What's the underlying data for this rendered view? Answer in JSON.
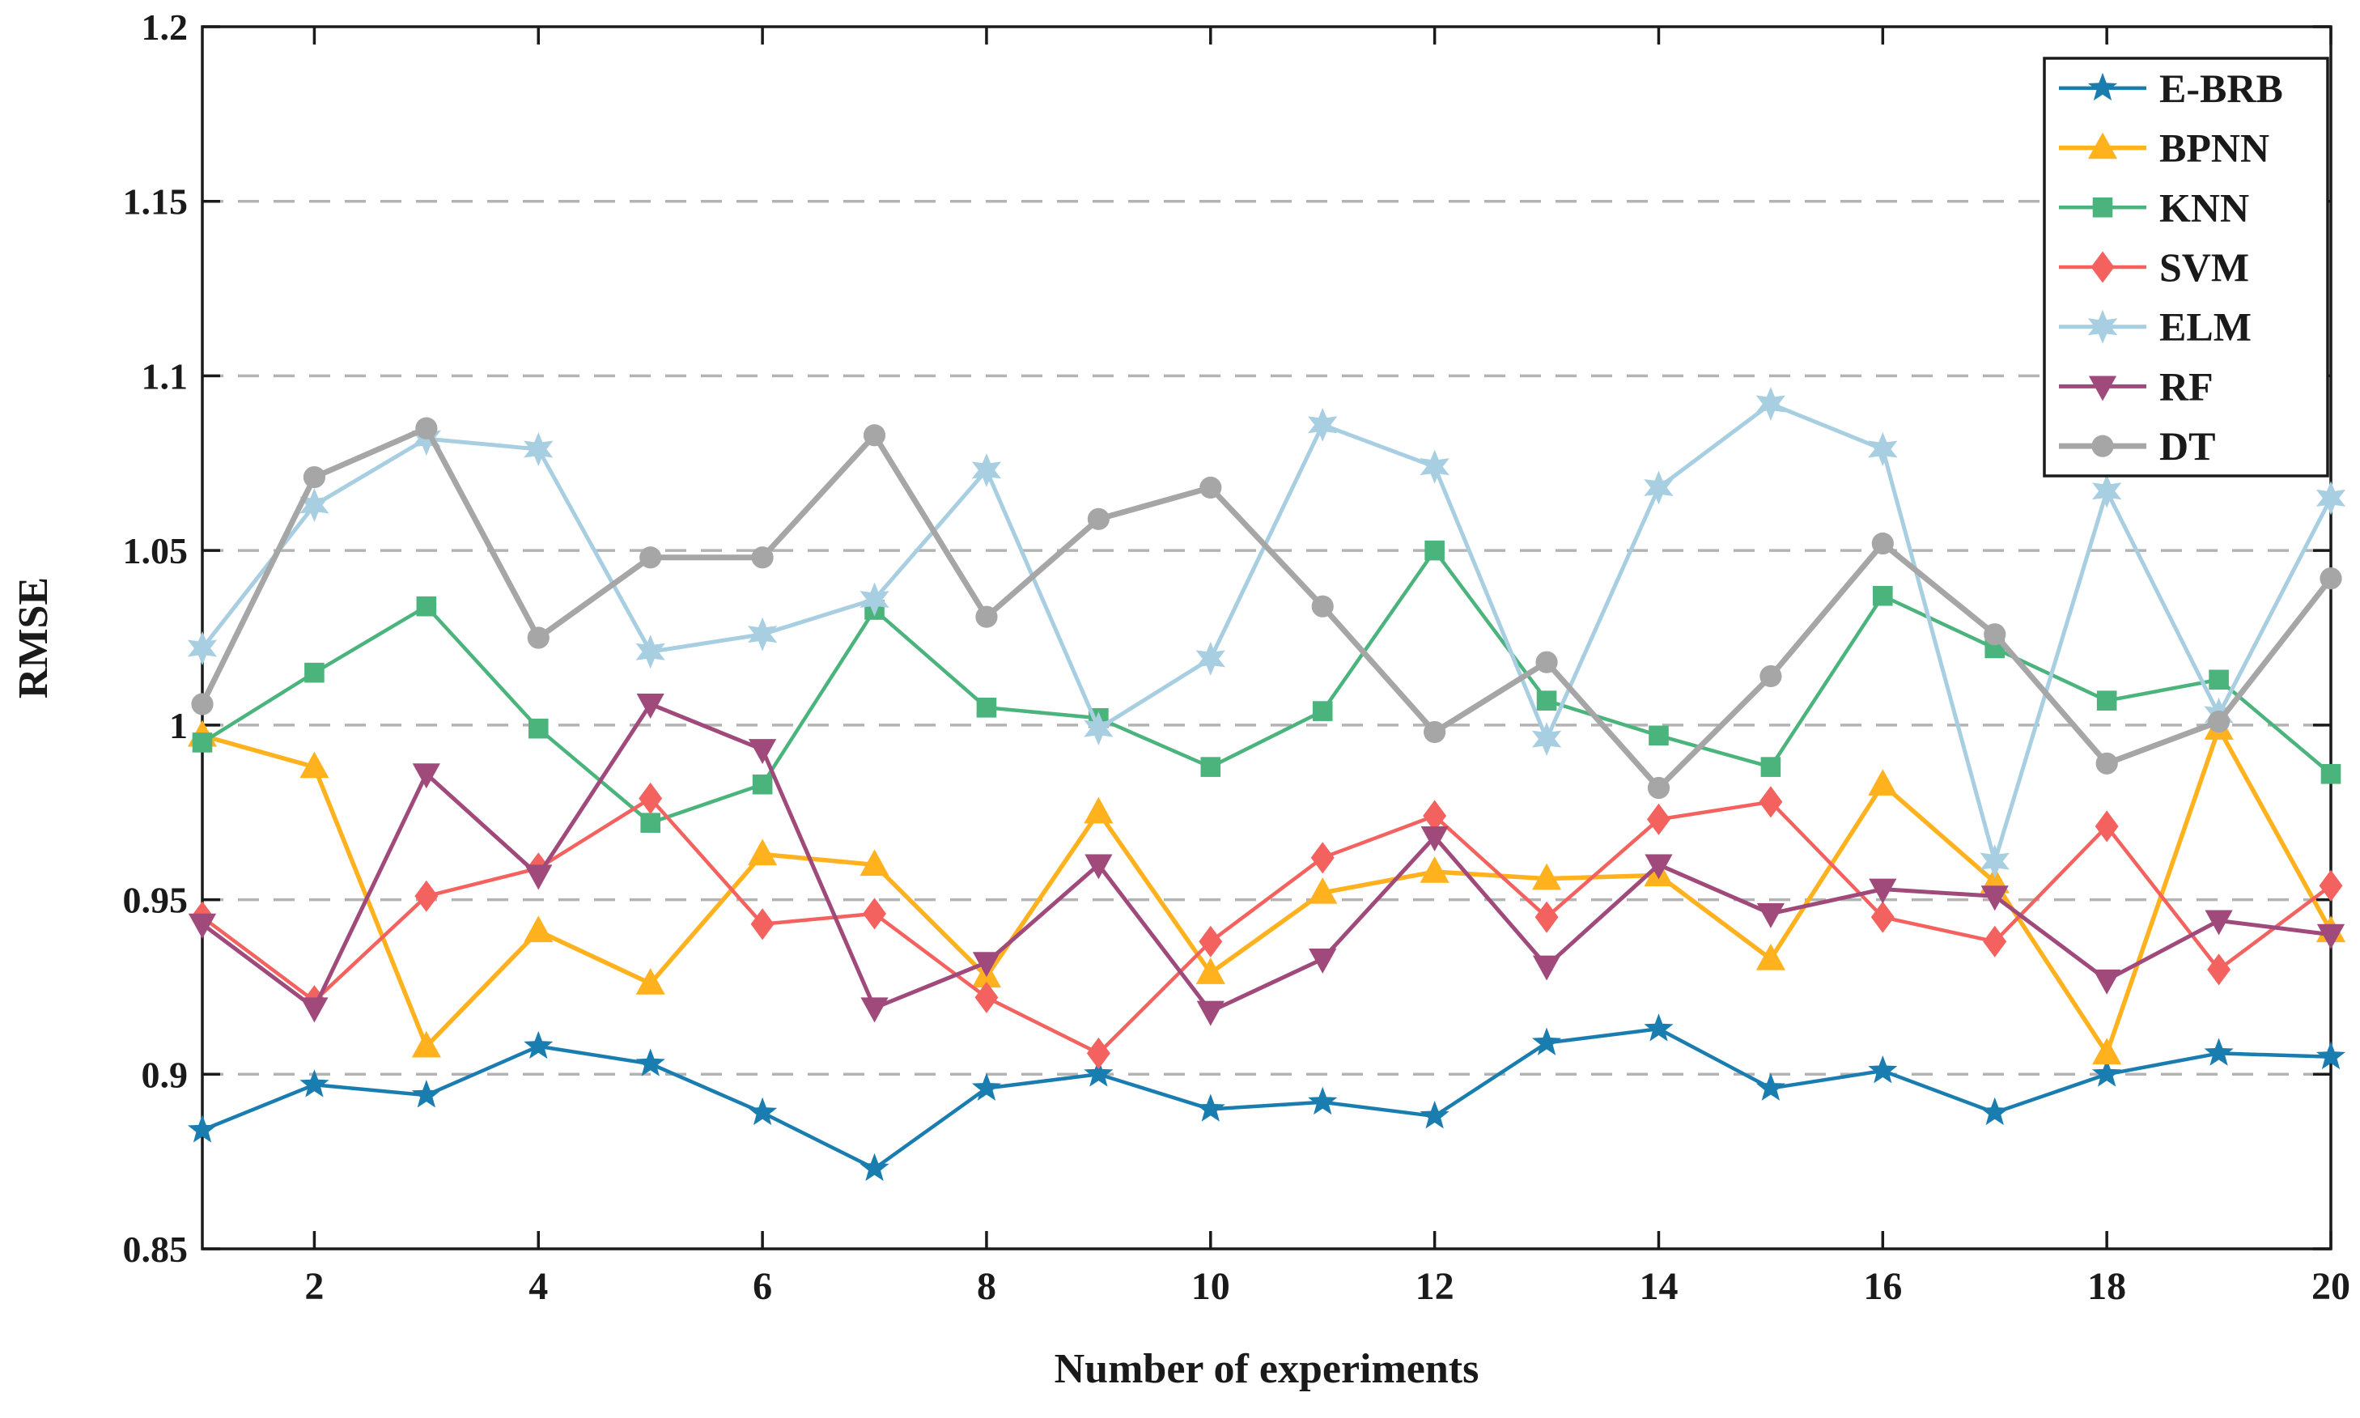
{
  "figure": {
    "background": "#ffffff",
    "border_color": "#1a1a1a",
    "grid_color": "#b3b3b3",
    "tick_label_color": "#1a1a1a"
  },
  "chart_data": {
    "type": "line",
    "title": "",
    "xlabel": "Number of experiments",
    "ylabel": "RMSE",
    "xlim": [
      1,
      20
    ],
    "ylim": [
      0.85,
      1.2
    ],
    "xticks": [
      2,
      4,
      6,
      8,
      10,
      12,
      14,
      16,
      18,
      20
    ],
    "yticks": [
      0.85,
      0.9,
      0.95,
      1.0,
      1.05,
      1.1,
      1.15,
      1.2
    ],
    "ytick_labels": [
      "0.85",
      "0.9",
      "0.95",
      "1",
      "1.05",
      "1.1",
      "1.15",
      "1.2"
    ],
    "grid": "horizontal-dashed",
    "grid_values": [
      0.9,
      0.95,
      1.0,
      1.05,
      1.1,
      1.15
    ],
    "legend_position": "top-right",
    "x": [
      1,
      2,
      3,
      4,
      5,
      6,
      7,
      8,
      9,
      10,
      11,
      12,
      13,
      14,
      15,
      16,
      17,
      18,
      19,
      20
    ],
    "series": [
      {
        "name": "E-BRB",
        "color": "#1a7db0",
        "marker": "star",
        "line_width": 4.5,
        "marker_size": 19,
        "values": [
          0.884,
          0.897,
          0.894,
          0.908,
          0.903,
          0.889,
          0.873,
          0.896,
          0.9,
          0.89,
          0.892,
          0.888,
          0.909,
          0.913,
          0.896,
          0.901,
          0.889,
          0.9,
          0.906,
          0.905
        ]
      },
      {
        "name": "BPNN",
        "color": "#ffb11e",
        "marker": "triangle-up",
        "line_width": 5.5,
        "marker_size": 19,
        "values": [
          0.997,
          0.988,
          0.908,
          0.941,
          0.926,
          0.963,
          0.96,
          0.928,
          0.975,
          0.929,
          0.952,
          0.958,
          0.956,
          0.957,
          0.933,
          0.983,
          0.955,
          0.906,
          0.999,
          0.941
        ]
      },
      {
        "name": "KNN",
        "color": "#4bb47d",
        "marker": "square",
        "line_width": 4.5,
        "marker_size": 15,
        "values": [
          0.995,
          1.015,
          1.034,
          0.999,
          0.972,
          0.983,
          1.033,
          1.005,
          1.002,
          0.988,
          1.004,
          1.05,
          1.007,
          0.997,
          0.988,
          1.037,
          1.022,
          1.007,
          1.013,
          0.986
        ]
      },
      {
        "name": "SVM",
        "color": "#f3625f",
        "marker": "diamond",
        "line_width": 4.5,
        "marker_size": 17,
        "values": [
          0.945,
          0.921,
          0.951,
          0.959,
          0.979,
          0.943,
          0.946,
          0.922,
          0.906,
          0.938,
          0.962,
          0.974,
          0.945,
          0.973,
          0.978,
          0.945,
          0.938,
          0.971,
          0.93,
          0.954
        ]
      },
      {
        "name": "ELM",
        "color": "#a8cee2",
        "marker": "hexagram",
        "line_width": 5,
        "marker_size": 21,
        "values": [
          1.022,
          1.063,
          1.082,
          1.079,
          1.021,
          1.026,
          1.036,
          1.073,
          0.999,
          1.019,
          1.086,
          1.074,
          0.996,
          1.068,
          1.092,
          1.079,
          0.961,
          1.067,
          1.003,
          1.065
        ]
      },
      {
        "name": "RF",
        "color": "#a04a7c",
        "marker": "triangle-down",
        "line_width": 5,
        "marker_size": 18,
        "values": [
          0.943,
          0.919,
          0.986,
          0.957,
          1.006,
          0.993,
          0.919,
          0.932,
          0.96,
          0.918,
          0.933,
          0.968,
          0.931,
          0.96,
          0.946,
          0.953,
          0.951,
          0.927,
          0.944,
          0.94
        ]
      },
      {
        "name": "DT",
        "color": "#a6a6a6",
        "marker": "circle",
        "line_width": 7,
        "marker_size": 16,
        "values": [
          1.006,
          1.071,
          1.085,
          1.025,
          1.048,
          1.048,
          1.083,
          1.031,
          1.059,
          1.068,
          1.034,
          0.998,
          1.018,
          0.982,
          1.014,
          1.052,
          1.026,
          0.989,
          1.001,
          1.042
        ]
      }
    ]
  }
}
